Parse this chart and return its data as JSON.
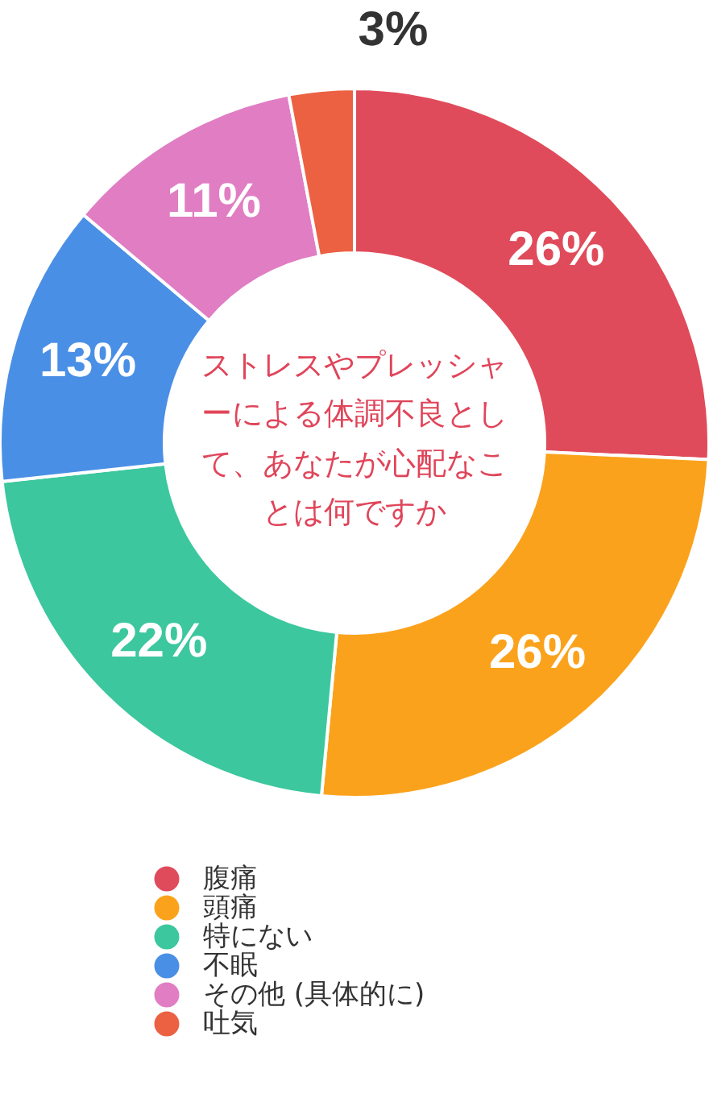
{
  "chart_data": {
    "type": "donut",
    "title": "ストレスやプレッシャーによる体調不良として、あなたが心配なことは何ですか",
    "categories": [
      "腹痛",
      "頭痛",
      "特にない",
      "不眠",
      "その他 (具体的に)",
      "吐気"
    ],
    "values": [
      26,
      26,
      22,
      13,
      11,
      3
    ],
    "value_labels": [
      "26%",
      "26%",
      "22%",
      "13%",
      "11%",
      "3%"
    ],
    "colors": [
      "#e04b5b",
      "#fba21c",
      "#3cc79e",
      "#4a8fe6",
      "#e07dc3",
      "#ec6142"
    ],
    "legend": "bottom"
  }
}
